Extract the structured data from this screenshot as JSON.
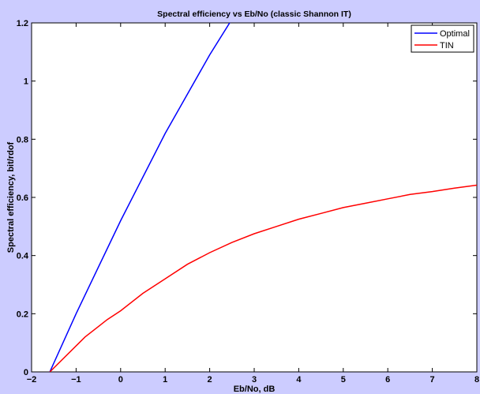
{
  "chart_data": {
    "type": "line",
    "title": "Spectral efficiency vs Eb/No (classic Shannon IT)",
    "xlabel": "Eb/No, dB",
    "ylabel": "Spectral efficiency, bit/rdof",
    "xlim": [
      -2,
      8
    ],
    "ylim": [
      0,
      1.2
    ],
    "xticks": [
      -2,
      -1,
      0,
      1,
      2,
      3,
      4,
      5,
      6,
      7,
      8
    ],
    "yticks": [
      0,
      0.2,
      0.4,
      0.6,
      0.8,
      1,
      1.2
    ],
    "xtick_labels": [
      "−2",
      "−1",
      "0",
      "1",
      "2",
      "3",
      "4",
      "5",
      "6",
      "7",
      "8"
    ],
    "ytick_labels": [
      "0",
      "0.2",
      "0.4",
      "0.6",
      "0.8",
      "1",
      "1.2"
    ],
    "grid": false,
    "legend_position": "top-right",
    "series": [
      {
        "name": "Optimal",
        "color": "#0000ff",
        "x": [
          -1.59,
          -1.0,
          0.0,
          1.0,
          2.0,
          2.53
        ],
        "y": [
          0.0,
          0.2,
          0.52,
          0.82,
          1.09,
          1.22
        ]
      },
      {
        "name": "TIN",
        "color": "#ff0000",
        "x": [
          -1.59,
          -0.8,
          -0.3,
          0.0,
          0.5,
          1.0,
          1.5,
          2.0,
          2.5,
          3.0,
          3.5,
          4.0,
          4.5,
          5.0,
          5.5,
          6.0,
          6.5,
          7.0,
          7.5,
          8.0
        ],
        "y": [
          0.0,
          0.12,
          0.18,
          0.21,
          0.27,
          0.32,
          0.37,
          0.41,
          0.445,
          0.475,
          0.5,
          0.525,
          0.545,
          0.565,
          0.58,
          0.595,
          0.61,
          0.62,
          0.632,
          0.642
        ]
      }
    ]
  }
}
